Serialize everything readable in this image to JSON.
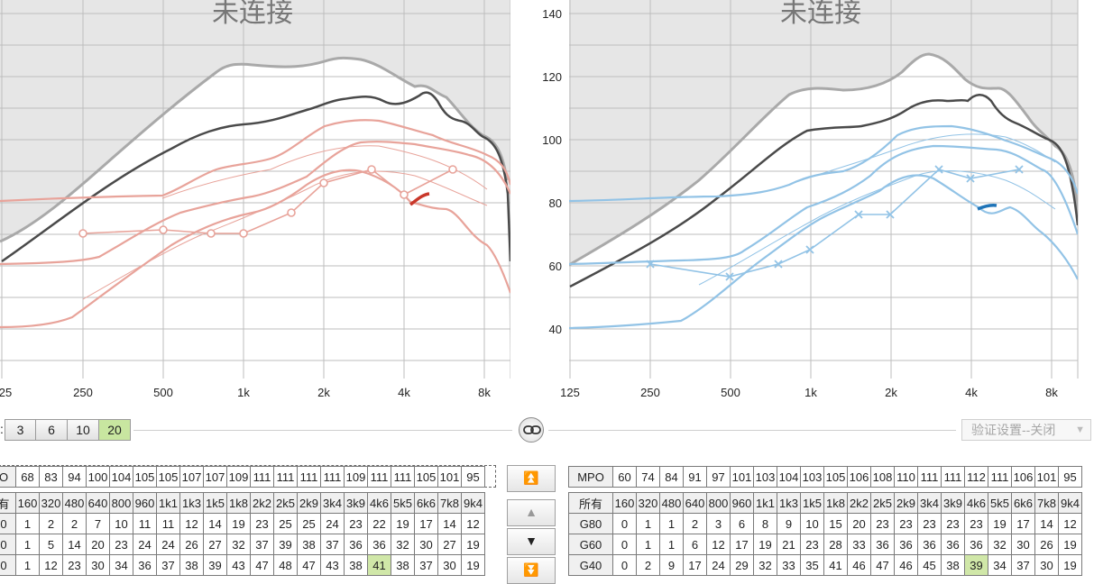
{
  "left_panel": {
    "title": "未连接",
    "x_ticks": [
      "25",
      "250",
      "500",
      "1k",
      "2k",
      "4k",
      "8k"
    ]
  },
  "right_panel": {
    "title": "未连接",
    "x_ticks": [
      "125",
      "250",
      "500",
      "1k",
      "2k",
      "4k",
      "8k"
    ],
    "y_ticks": [
      "140",
      "120",
      "100",
      "80",
      "60",
      "40"
    ]
  },
  "colors": {
    "left_accent": "#e8a39a",
    "left_strong": "#c9372a",
    "right_accent": "#92c3e6",
    "right_strong": "#1f74b8",
    "outline_gray": "#a9a9a9",
    "outline_dark": "#4a4a4a",
    "selected_green": "#c8e6a0"
  },
  "controls": {
    "step_prefix": ":",
    "steps": [
      "3",
      "6",
      "10",
      "20"
    ],
    "active_step": "20",
    "link_icon": "link-icon",
    "verify_label": "验证设置--关闭"
  },
  "nav": {
    "up_fast": "⏫",
    "up": "▲",
    "down": "▼",
    "down_fast": "⏬"
  },
  "left_table": {
    "mpo_label": "O",
    "mpo_values": [
      "68",
      "83",
      "94",
      "100",
      "104",
      "105",
      "105",
      "107",
      "107",
      "109",
      "111",
      "111",
      "111",
      "111",
      "109",
      "111",
      "111",
      "105",
      "101",
      "95"
    ],
    "header_label": "有",
    "bands": [
      "160",
      "320",
      "480",
      "640",
      "800",
      "960",
      "1k1",
      "1k3",
      "1k5",
      "1k8",
      "2k2",
      "2k5",
      "2k9",
      "3k4",
      "3k9",
      "4k6",
      "5k5",
      "6k6",
      "7k8",
      "9k4"
    ],
    "rows": [
      {
        "label": "0",
        "values": [
          "1",
          "2",
          "2",
          "7",
          "10",
          "11",
          "11",
          "12",
          "14",
          "19",
          "23",
          "25",
          "25",
          "24",
          "23",
          "22",
          "19",
          "17",
          "14",
          "12"
        ],
        "highlight": -1
      },
      {
        "label": "0",
        "values": [
          "1",
          "5",
          "14",
          "20",
          "23",
          "24",
          "24",
          "26",
          "27",
          "32",
          "37",
          "39",
          "38",
          "37",
          "36",
          "36",
          "32",
          "30",
          "27",
          "19"
        ],
        "highlight": -1
      },
      {
        "label": "0",
        "values": [
          "1",
          "12",
          "23",
          "30",
          "34",
          "36",
          "37",
          "38",
          "39",
          "43",
          "47",
          "48",
          "47",
          "43",
          "38",
          "41",
          "38",
          "37",
          "30",
          "19"
        ],
        "highlight": 15
      }
    ]
  },
  "right_table": {
    "mpo_label": "MPO",
    "mpo_values": [
      "60",
      "74",
      "84",
      "91",
      "97",
      "101",
      "103",
      "104",
      "103",
      "105",
      "106",
      "108",
      "110",
      "111",
      "111",
      "112",
      "111",
      "106",
      "101",
      "95"
    ],
    "header_label": "所有",
    "bands": [
      "160",
      "320",
      "480",
      "640",
      "800",
      "960",
      "1k1",
      "1k3",
      "1k5",
      "1k8",
      "2k2",
      "2k5",
      "2k9",
      "3k4",
      "3k9",
      "4k6",
      "5k5",
      "6k6",
      "7k8",
      "9k4"
    ],
    "rows": [
      {
        "label": "G80",
        "values": [
          "0",
          "1",
          "1",
          "2",
          "3",
          "6",
          "8",
          "9",
          "10",
          "15",
          "20",
          "23",
          "23",
          "23",
          "23",
          "23",
          "19",
          "17",
          "14",
          "12"
        ],
        "highlight": -1
      },
      {
        "label": "G60",
        "values": [
          "0",
          "1",
          "1",
          "6",
          "12",
          "17",
          "19",
          "21",
          "23",
          "28",
          "33",
          "36",
          "36",
          "36",
          "36",
          "36",
          "32",
          "30",
          "26",
          "19"
        ],
        "highlight": -1
      },
      {
        "label": "G40",
        "values": [
          "0",
          "2",
          "9",
          "17",
          "24",
          "29",
          "32",
          "33",
          "35",
          "41",
          "46",
          "47",
          "46",
          "45",
          "38",
          "39",
          "34",
          "37",
          "30",
          "19"
        ],
        "highlight": 15
      }
    ]
  }
}
